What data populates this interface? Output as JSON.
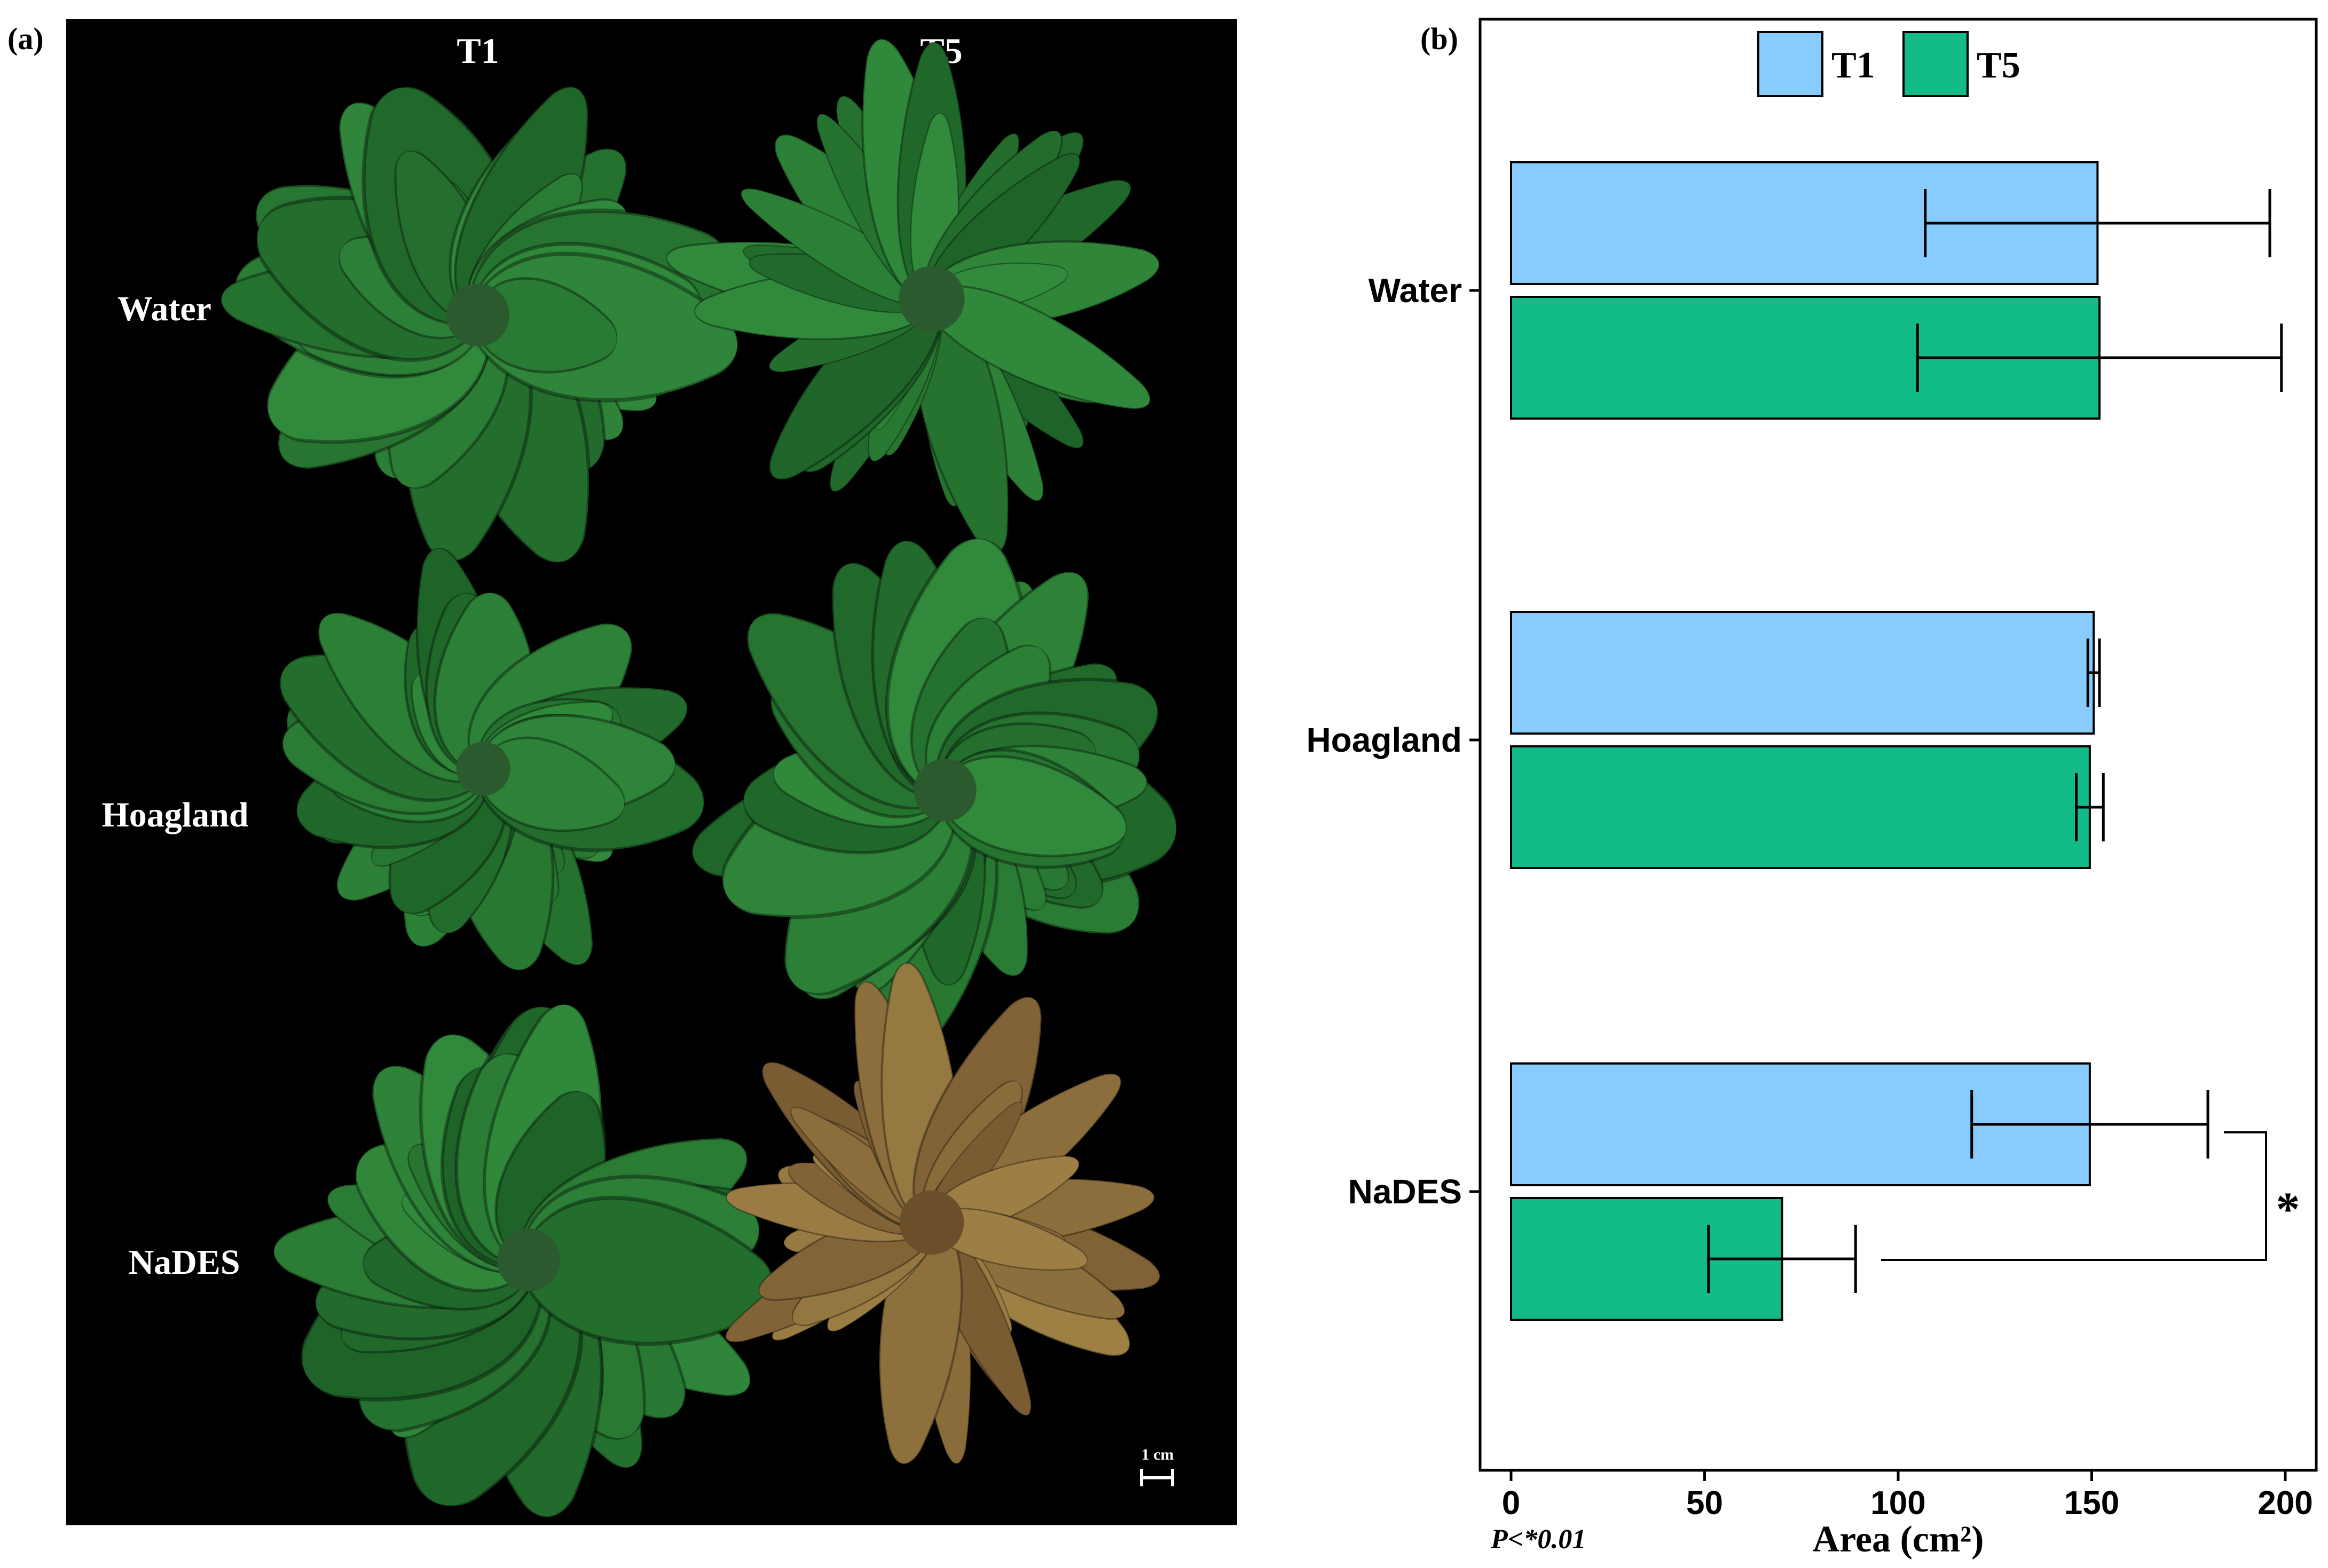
{
  "panel_a": {
    "label": "(a)",
    "columns": [
      "T1",
      "T5"
    ],
    "rows": [
      "Water",
      "Hoagland",
      "NaDES"
    ],
    "scale_bar": "1 cm",
    "colors": {
      "background": "#000000",
      "healthy_leaf": "#2f7a32",
      "dry_leaf": "#8a6a3a"
    }
  },
  "panel_b": {
    "label": "(b)",
    "significance_marker": "*",
    "p_note": "P<*0.01"
  },
  "chart_data": {
    "type": "bar",
    "orientation": "horizontal",
    "categories": [
      "Water",
      "Hoagland",
      "NaDES"
    ],
    "series": [
      {
        "name": "T1",
        "color": "#87cbff",
        "values": [
          151.5,
          150.5,
          149.5
        ],
        "error": [
          44.5,
          1.5,
          30.5
        ]
      },
      {
        "name": "T5",
        "color": "#13bb89",
        "values": [
          152.0,
          149.5,
          70.0
        ],
        "error": [
          47.0,
          3.5,
          19.0
        ]
      }
    ],
    "xlabel": "Area (cm²)",
    "xlim": [
      -8,
      208
    ],
    "xticks": [
      0,
      50,
      100,
      150,
      200
    ],
    "grid": false,
    "legend_position": "top-center"
  }
}
